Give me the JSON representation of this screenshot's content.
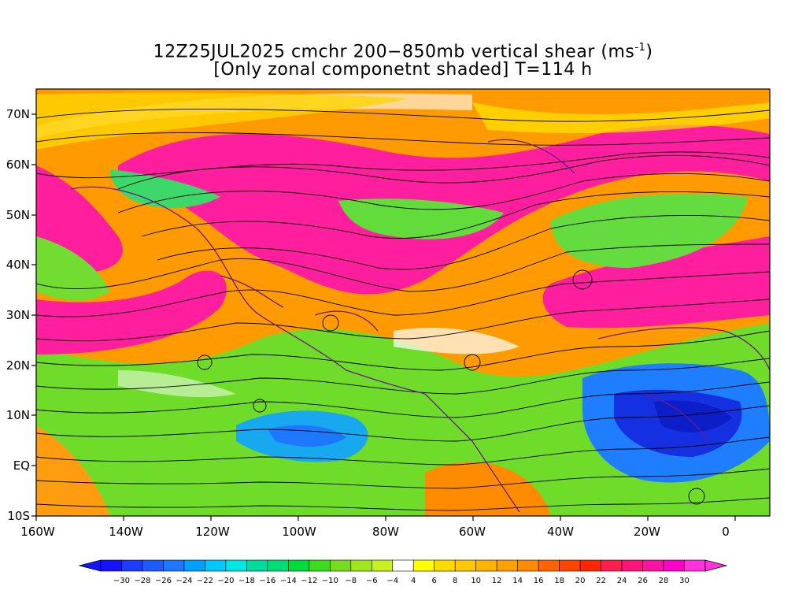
{
  "title": {
    "line1_pre": "12Z25JUL2025 cmchr 200−850mb vertical shear (ms",
    "line1_sup": "-1",
    "line1_post": ")",
    "line2": "[Only zonal componetnt shaded] T=114 h"
  },
  "axes": {
    "lat_labels": [
      "70N",
      "60N",
      "50N",
      "40N",
      "30N",
      "20N",
      "10N",
      "EQ",
      "10S"
    ],
    "lon_labels": [
      "160W",
      "140W",
      "120W",
      "100W",
      "80W",
      "60W",
      "40W",
      "20W",
      "0"
    ]
  },
  "colorbar": {
    "labels": [
      "−30",
      "−28",
      "−26",
      "−24",
      "−22",
      "−20",
      "−18",
      "−16",
      "−14",
      "−12",
      "−10",
      "−8",
      "−6",
      "−4",
      "4",
      "6",
      "8",
      "10",
      "12",
      "14",
      "16",
      "18",
      "20",
      "22",
      "24",
      "26",
      "28",
      "30"
    ],
    "colors": [
      "#1414ff",
      "#1e3cff",
      "#1e5aff",
      "#1e78ff",
      "#00a0ff",
      "#00c8ff",
      "#00e6e6",
      "#00dca0",
      "#00dc78",
      "#00dc3c",
      "#3cdc1e",
      "#78dc1e",
      "#a0e61e",
      "#c8f01e",
      "#ffffff",
      "#ffff00",
      "#ffdc00",
      "#ffc800",
      "#ffb400",
      "#ffa000",
      "#ff8c00",
      "#ff6400",
      "#ff4600",
      "#ff2800",
      "#ff1e50",
      "#ff1478",
      "#ff14a0",
      "#ff00c8",
      "#ff32dc"
    ]
  }
}
